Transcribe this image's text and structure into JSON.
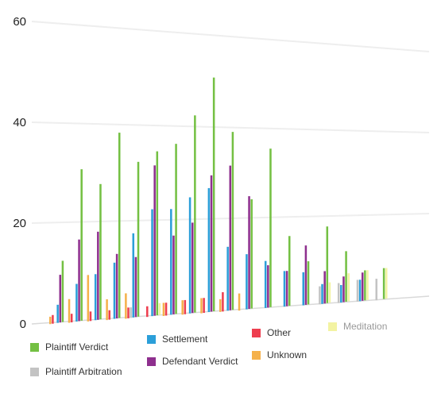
{
  "colors": {
    "Plaintiff Verdict": "#74c043",
    "Plaintiff Arbitration": "#c3c3c3",
    "Settlement": "#2b9fd9",
    "Defendant Verdict": "#8e2f8e",
    "Other": "#ee3e4f",
    "Unknown": "#f5b14b",
    "Meditation": "#f3f3a2"
  },
  "legend": [
    {
      "label": "Plaintiff Verdict",
      "icon": "green-square"
    },
    {
      "label": "Plaintiff Arbitration",
      "icon": "gray-square"
    },
    {
      "label": "Settlement",
      "icon": "blue-square"
    },
    {
      "label": "Defendant Verdict",
      "icon": "purple-square"
    },
    {
      "label": "Other",
      "icon": "red-square"
    },
    {
      "label": "Unknown",
      "icon": "orange-square"
    },
    {
      "label": "Meditation",
      "icon": "yellow-square"
    }
  ],
  "chart_data": {
    "type": "bar",
    "title": "",
    "xlabel": "",
    "ylabel": "",
    "ylim": [
      0,
      60
    ],
    "yticks": [
      0,
      20,
      40,
      60
    ],
    "grid": true,
    "legend_position": "bottom",
    "perspective": "3d-tilted",
    "categories": [
      "",
      "",
      "",
      "",
      "",
      "",
      "",
      "",
      "",
      "",
      "",
      "",
      "",
      "",
      "",
      "",
      "",
      ""
    ],
    "series": [
      {
        "name": "Unknown",
        "values": [
          1.2,
          4.5,
          9.2,
          4.0,
          5.0,
          0,
          2.5,
          2.8,
          3.0,
          2.5,
          3.5,
          0,
          0,
          0,
          0,
          0,
          0,
          0
        ]
      },
      {
        "name": "Other",
        "values": [
          1.5,
          1.5,
          1.7,
          1.7,
          2.0,
          2.0,
          2.5,
          2.8,
          3.0,
          4.0,
          0,
          0,
          0,
          0,
          0,
          0,
          0,
          0
        ]
      },
      {
        "name": "Plaintiff Arbitration",
        "values": [
          0,
          0,
          0,
          0,
          2.0,
          0,
          0,
          0,
          0,
          0,
          0,
          0,
          0,
          0,
          4.0,
          4.5,
          5.0,
          5.0
        ]
      },
      {
        "name": "Settlement",
        "values": [
          3.5,
          7.5,
          9.3,
          11.5,
          17.5,
          22.5,
          22.5,
          25.0,
          27.0,
          14.0,
          12.2,
          10.5,
          8.0,
          7.5,
          4.5,
          4.0,
          5.0,
          0
        ]
      },
      {
        "name": "Defendant Verdict",
        "values": [
          9.5,
          16.5,
          18.0,
          13.3,
          12.5,
          31.8,
          16.8,
          19.5,
          29.8,
          32.0,
          25.2,
          9.5,
          8.0,
          13.7,
          7.5,
          6.0,
          6.7,
          0
        ]
      },
      {
        "name": "Plaintiff Verdict",
        "values": [
          12.3,
          30.8,
          27.8,
          38.5,
          32.5,
          34.8,
          36.5,
          42.8,
          51.3,
          39.5,
          24.5,
          36.0,
          16.0,
          10.0,
          18.0,
          12.0,
          7.2,
          7.5
        ]
      },
      {
        "name": "Meditation",
        "values": [
          0,
          0,
          0,
          0,
          0,
          2.5,
          0,
          0,
          0,
          0,
          0,
          0,
          0,
          0,
          4.8,
          6.7,
          7.2,
          7.5
        ]
      }
    ]
  }
}
